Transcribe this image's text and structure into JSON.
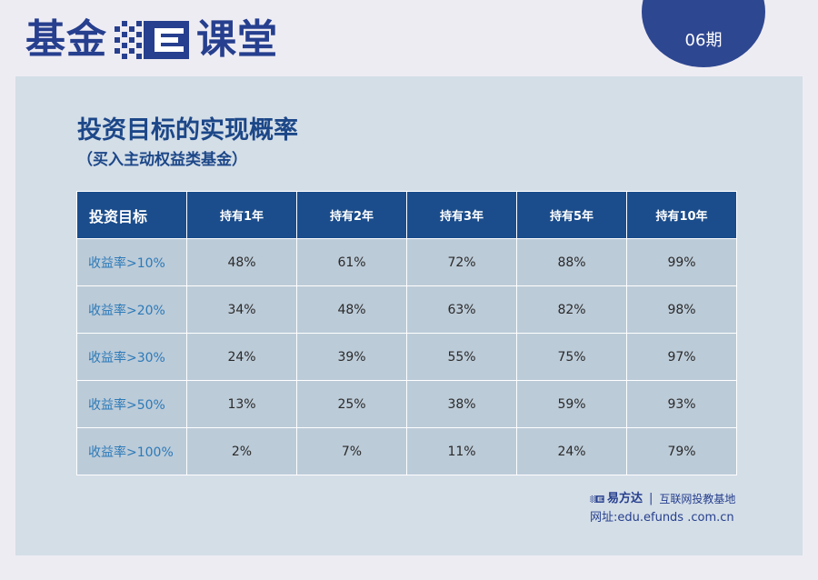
{
  "brand": {
    "part1": "基金",
    "part2": "课堂",
    "logo_icon": "efunds-e-logo-icon",
    "color": "#263f8e"
  },
  "issue": {
    "label": "06期",
    "color": "#2e4791"
  },
  "card": {
    "title": "投资目标的实现概率",
    "subtitle": "（买入主动权益类基金）"
  },
  "table": {
    "headers": [
      "投资目标",
      "持有1年",
      "持有2年",
      "持有3年",
      "持有5年",
      "持有10年"
    ],
    "rows": [
      {
        "label": "收益率>10%",
        "values": [
          "48%",
          "61%",
          "72%",
          "88%",
          "99%"
        ]
      },
      {
        "label": "收益率>20%",
        "values": [
          "34%",
          "48%",
          "63%",
          "82%",
          "98%"
        ]
      },
      {
        "label": "收益率>30%",
        "values": [
          "24%",
          "39%",
          "55%",
          "75%",
          "97%"
        ]
      },
      {
        "label": "收益率>50%",
        "values": [
          "13%",
          "25%",
          "38%",
          "59%",
          "93%"
        ]
      },
      {
        "label": "收益率>100%",
        "values": [
          "2%",
          "7%",
          "11%",
          "24%",
          "79%"
        ]
      }
    ],
    "header_color": "#1b4d8c",
    "cell_color": "#bccbd8",
    "label_color": "#2c7ab8"
  },
  "footer": {
    "logo_icon": "efunds-e-logo-icon",
    "brand_name": "易方达",
    "separator": "|",
    "slogan": "互联网投教基地",
    "url": "网址:edu.efunds .com.cn"
  }
}
